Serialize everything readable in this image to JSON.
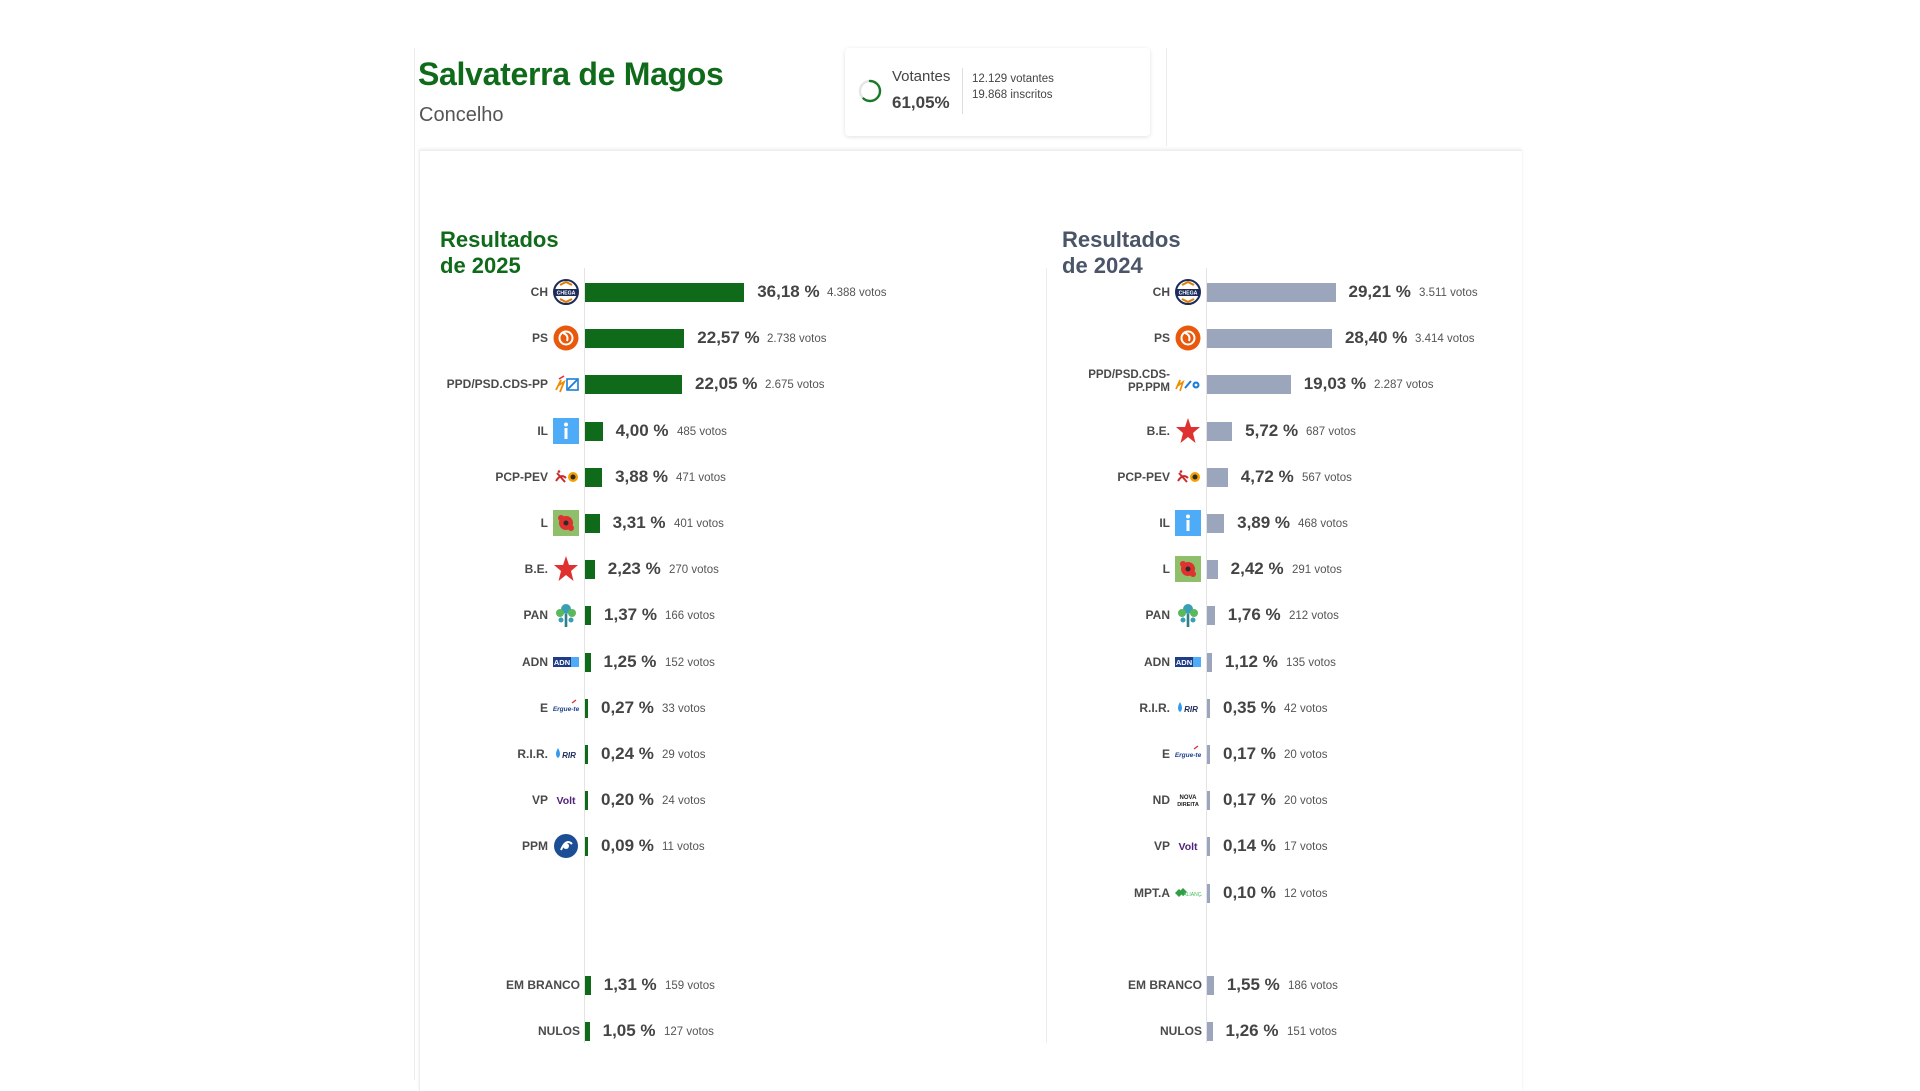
{
  "header": {
    "title": "Salvaterra de Magos",
    "subtitle": "Concelho"
  },
  "turnout": {
    "label": "Votantes",
    "percent_text": "61,05%",
    "percent": 61.05,
    "voters_text": "12.129 votantes",
    "registered_text": "19.868 inscritos",
    "color": "#1a7a2a"
  },
  "colors": {
    "accent_2025": "#0f6b1a",
    "accent_2024": "#9ba6bd"
  },
  "results_2025": {
    "heading": "Resultados de 2025",
    "rows": [
      {
        "party": "CH",
        "logo": "ch-logo",
        "pct_text": "36,18 %",
        "pct": 36.18,
        "votes": "4.388 votos"
      },
      {
        "party": "PS",
        "logo": "ps-logo",
        "pct_text": "22,57 %",
        "pct": 22.57,
        "votes": "2.738 votos"
      },
      {
        "party": "PPD/PSD.CDS-PP",
        "logo": "ppd-cds-logo",
        "pct_text": "22,05 %",
        "pct": 22.05,
        "votes": "2.675 votos"
      },
      {
        "party": "IL",
        "logo": "il-logo",
        "pct_text": "4,00 %",
        "pct": 4.0,
        "votes": "485 votos"
      },
      {
        "party": "PCP-PEV",
        "logo": "pcp-pev-logo",
        "pct_text": "3,88 %",
        "pct": 3.88,
        "votes": "471 votos"
      },
      {
        "party": "L",
        "logo": "livre-logo",
        "pct_text": "3,31 %",
        "pct": 3.31,
        "votes": "401 votos"
      },
      {
        "party": "B.E.",
        "logo": "be-star-logo",
        "pct_text": "2,23 %",
        "pct": 2.23,
        "votes": "270 votos"
      },
      {
        "party": "PAN",
        "logo": "pan-tree-logo",
        "pct_text": "1,37 %",
        "pct": 1.37,
        "votes": "166 votos"
      },
      {
        "party": "ADN",
        "logo": "adn-logo",
        "pct_text": "1,25 %",
        "pct": 1.25,
        "votes": "152 votos"
      },
      {
        "party": "E",
        "logo": "ergue-te-logo",
        "pct_text": "0,27 %",
        "pct": 0.27,
        "votes": "33 votos"
      },
      {
        "party": "R.I.R.",
        "logo": "rir-logo",
        "pct_text": "0,24 %",
        "pct": 0.24,
        "votes": "29 votos"
      },
      {
        "party": "VP",
        "logo": "volt-logo",
        "pct_text": "0,20 %",
        "pct": 0.2,
        "votes": "24 votos"
      },
      {
        "party": "PPM",
        "logo": "ppm-logo",
        "pct_text": "0,09 %",
        "pct": 0.09,
        "votes": "11 votos"
      }
    ],
    "blank": {
      "party": "EM BRANCO",
      "pct_text": "1,31 %",
      "pct": 1.31,
      "votes": "159 votos"
    },
    "null": {
      "party": "NULOS",
      "pct_text": "1,05 %",
      "pct": 1.05,
      "votes": "127 votos"
    }
  },
  "results_2024": {
    "heading": "Resultados de 2024",
    "rows": [
      {
        "party": "CH",
        "logo": "ch-logo",
        "pct_text": "29,21 %",
        "pct": 29.21,
        "votes": "3.511 votos"
      },
      {
        "party": "PS",
        "logo": "ps-logo",
        "pct_text": "28,40 %",
        "pct": 28.4,
        "votes": "3.414 votos"
      },
      {
        "party": "PPD/PSD.CDS-PP.PPM",
        "party_lines": [
          "PPD/PSD.CDS-",
          "PP.PPM"
        ],
        "logo": "ppd-cds-ppm-logo",
        "pct_text": "19,03 %",
        "pct": 19.03,
        "votes": "2.287 votos"
      },
      {
        "party": "B.E.",
        "logo": "be-star-logo",
        "pct_text": "5,72 %",
        "pct": 5.72,
        "votes": "687 votos"
      },
      {
        "party": "PCP-PEV",
        "logo": "pcp-pev-logo",
        "pct_text": "4,72 %",
        "pct": 4.72,
        "votes": "567 votos"
      },
      {
        "party": "IL",
        "logo": "il-logo",
        "pct_text": "3,89 %",
        "pct": 3.89,
        "votes": "468 votos"
      },
      {
        "party": "L",
        "logo": "livre-logo",
        "pct_text": "2,42 %",
        "pct": 2.42,
        "votes": "291 votos"
      },
      {
        "party": "PAN",
        "logo": "pan-tree-logo",
        "pct_text": "1,76 %",
        "pct": 1.76,
        "votes": "212 votos"
      },
      {
        "party": "ADN",
        "logo": "adn-logo",
        "pct_text": "1,12 %",
        "pct": 1.12,
        "votes": "135 votos"
      },
      {
        "party": "R.I.R.",
        "logo": "rir-logo",
        "pct_text": "0,35 %",
        "pct": 0.35,
        "votes": "42 votos"
      },
      {
        "party": "E",
        "logo": "ergue-te-logo",
        "pct_text": "0,17 %",
        "pct": 0.17,
        "votes": "20 votos"
      },
      {
        "party": "ND",
        "logo": "nova-direita-logo",
        "pct_text": "0,17 %",
        "pct": 0.17,
        "votes": "20 votos"
      },
      {
        "party": "VP",
        "logo": "volt-logo",
        "pct_text": "0,14 %",
        "pct": 0.14,
        "votes": "17 votos"
      },
      {
        "party": "MPT.A",
        "logo": "mpt-logo",
        "pct_text": "0,10 %",
        "pct": 0.1,
        "votes": "12 votos"
      }
    ],
    "blank": {
      "party": "EM BRANCO",
      "pct_text": "1,55 %",
      "pct": 1.55,
      "votes": "186 votos"
    },
    "null": {
      "party": "NULOS",
      "pct_text": "1,26 %",
      "pct": 1.26,
      "votes": "151 votos"
    }
  },
  "logo_text": {
    "ch": "CHEGA",
    "adn": "ADN",
    "ergue_te": "Ergue-te",
    "rir": "RIR",
    "volt": "Volt",
    "nova_direita_1": "NOVA",
    "nova_direita_2": "DIREITA",
    "mpt": "ALIANÇA"
  }
}
